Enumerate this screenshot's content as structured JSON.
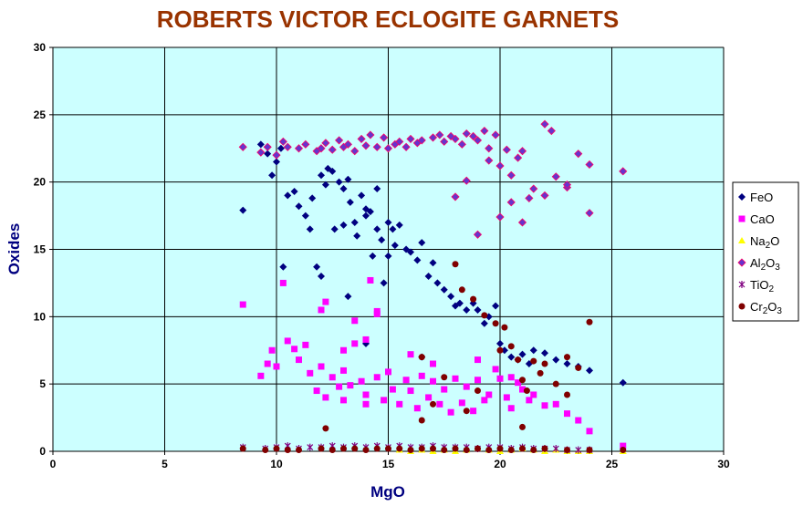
{
  "chart_data": {
    "type": "scatter",
    "title": "ROBERTS VICTOR ECLOGITE GARNETS",
    "x_label": "MgO",
    "y_label": "Oxides",
    "xlim": [
      0,
      30
    ],
    "ylim": [
      0,
      30
    ],
    "xticks": [
      0,
      5,
      10,
      15,
      20,
      25,
      30
    ],
    "yticks": [
      0,
      5,
      10,
      15,
      20,
      25,
      30
    ],
    "grid": true,
    "legend": "right",
    "series": [
      {
        "name": "FeO",
        "color": "#000080",
        "marker": "diamond",
        "x": [
          8.5,
          9.3,
          9.6,
          9.8,
          10.0,
          10.2,
          10.3,
          10.5,
          10.8,
          11.0,
          11.3,
          11.5,
          11.6,
          11.8,
          12.0,
          12.0,
          12.2,
          12.3,
          12.5,
          12.6,
          12.8,
          13.0,
          13.0,
          13.2,
          13.3,
          13.5,
          13.6,
          13.8,
          14.0,
          14.0,
          14.2,
          14.3,
          14.5,
          14.5,
          14.7,
          14.8,
          15.0,
          15.0,
          15.2,
          15.3,
          15.5,
          15.8,
          16.0,
          16.3,
          16.5,
          16.8,
          17.0,
          17.2,
          17.5,
          17.8,
          18.0,
          18.2,
          18.5,
          18.8,
          19.0,
          19.3,
          19.5,
          19.8,
          20.0,
          20.2,
          20.5,
          20.8,
          21.0,
          21.3,
          21.5,
          22.0,
          22.5,
          23.0,
          23.5,
          24.0,
          25.5,
          13.2,
          14.0,
          16.5
        ],
        "values": [
          17.9,
          22.8,
          22.1,
          20.5,
          21.5,
          22.5,
          13.7,
          19.0,
          19.3,
          18.2,
          17.5,
          16.5,
          18.8,
          13.7,
          13.0,
          20.5,
          19.8,
          21.0,
          20.8,
          16.5,
          20.0,
          19.5,
          16.8,
          20.2,
          18.5,
          17.0,
          16.0,
          19.0,
          18.0,
          17.5,
          17.8,
          14.5,
          16.5,
          19.5,
          15.7,
          12.5,
          17.0,
          14.5,
          16.5,
          15.3,
          16.8,
          15.0,
          14.8,
          14.2,
          15.5,
          13.0,
          14.0,
          12.5,
          12.0,
          11.5,
          10.8,
          11.0,
          10.5,
          11.0,
          10.5,
          9.5,
          10.0,
          10.8,
          8.0,
          7.5,
          7.0,
          6.8,
          7.2,
          6.5,
          7.5,
          7.3,
          6.8,
          6.5,
          6.3,
          6.0,
          5.1,
          11.5,
          8.0,
          7.0
        ]
      },
      {
        "name": "CaO",
        "color": "#ff00ff",
        "marker": "square",
        "x": [
          8.5,
          9.3,
          9.6,
          9.8,
          10.0,
          10.3,
          10.5,
          10.8,
          11.0,
          11.3,
          11.5,
          11.8,
          12.0,
          12.0,
          12.2,
          12.5,
          12.8,
          13.0,
          13.0,
          13.3,
          13.5,
          13.8,
          14.0,
          14.0,
          14.2,
          14.5,
          14.5,
          14.8,
          15.0,
          15.2,
          15.5,
          15.8,
          16.0,
          16.3,
          16.5,
          16.8,
          17.0,
          17.3,
          17.5,
          17.8,
          18.0,
          18.3,
          18.5,
          18.8,
          19.0,
          19.3,
          19.5,
          19.8,
          20.0,
          20.3,
          20.5,
          20.8,
          21.0,
          21.3,
          21.5,
          22.0,
          22.5,
          23.0,
          23.5,
          24.0,
          25.5,
          12.2,
          13.5,
          14.0,
          14.5,
          13.0,
          16.0,
          17.0,
          19.0,
          20.5
        ],
        "values": [
          10.9,
          5.6,
          6.5,
          7.5,
          6.3,
          12.5,
          8.2,
          7.6,
          6.8,
          7.9,
          5.8,
          4.5,
          10.5,
          6.3,
          4.0,
          5.5,
          4.8,
          7.5,
          3.8,
          4.9,
          9.7,
          5.2,
          4.2,
          3.5,
          12.7,
          10.4,
          5.5,
          3.8,
          5.9,
          4.6,
          3.5,
          5.3,
          4.5,
          3.2,
          5.6,
          4.0,
          5.2,
          3.5,
          4.6,
          2.9,
          5.4,
          3.6,
          4.8,
          3.0,
          5.3,
          3.8,
          4.2,
          6.1,
          5.4,
          4.0,
          3.2,
          5.1,
          4.6,
          3.8,
          4.2,
          3.4,
          3.5,
          2.8,
          2.3,
          1.5,
          0.4,
          11.1,
          8.0,
          8.3,
          10.2,
          6.0,
          7.2,
          6.5,
          6.8,
          5.5
        ]
      },
      {
        "name": "Na2O",
        "color": "#ffff00",
        "marker": "triangle",
        "x": [
          15.5,
          16.0,
          16.5,
          17.0,
          17.5,
          18.0,
          18.5,
          19.0,
          19.5,
          20.0,
          20.5,
          21.0,
          21.5,
          22.0,
          22.5,
          23.0,
          23.5,
          24.0,
          25.5
        ],
        "values": [
          0.1,
          0.0,
          0.1,
          0.0,
          0.1,
          0.0,
          0.1,
          0.2,
          0.1,
          0.0,
          0.1,
          0.2,
          0.1,
          0.0,
          0.1,
          0.0,
          0.0,
          0.0,
          0.0
        ]
      },
      {
        "name": "Al2O3",
        "color": "#6633cc",
        "marker": "diamond-edge",
        "x": [
          8.5,
          9.3,
          9.6,
          10.0,
          10.3,
          10.5,
          11.0,
          11.3,
          11.8,
          12.0,
          12.2,
          12.5,
          12.8,
          13.0,
          13.2,
          13.5,
          13.8,
          14.0,
          14.2,
          14.5,
          14.8,
          15.0,
          15.3,
          15.5,
          15.8,
          16.0,
          16.3,
          16.5,
          17.0,
          17.3,
          17.5,
          17.8,
          18.0,
          18.3,
          18.5,
          18.8,
          19.0,
          19.3,
          19.5,
          19.8,
          20.0,
          20.3,
          20.5,
          20.8,
          21.0,
          21.3,
          21.5,
          22.0,
          22.3,
          22.5,
          23.0,
          23.5,
          24.0,
          25.5,
          18.0,
          18.5,
          19.0,
          19.5,
          20.0,
          20.5,
          21.0,
          22.0,
          23.0,
          24.0
        ],
        "values": [
          22.6,
          22.2,
          22.6,
          22.0,
          23.0,
          22.6,
          22.5,
          22.8,
          22.3,
          22.5,
          22.9,
          22.4,
          23.1,
          22.6,
          22.8,
          22.3,
          23.2,
          22.7,
          23.5,
          22.6,
          23.3,
          22.5,
          22.8,
          23.0,
          22.6,
          23.2,
          22.9,
          23.1,
          23.3,
          23.5,
          23.0,
          23.4,
          23.2,
          22.8,
          23.6,
          23.4,
          23.1,
          23.8,
          22.5,
          23.5,
          21.2,
          22.4,
          20.5,
          21.8,
          22.3,
          18.8,
          19.5,
          24.3,
          23.8,
          20.4,
          19.6,
          22.1,
          21.3,
          20.8,
          18.9,
          20.1,
          16.1,
          21.6,
          17.4,
          18.5,
          17.0,
          19.0,
          19.8,
          17.7
        ]
      },
      {
        "name": "TiO2",
        "color": "#800080",
        "marker": "star",
        "x": [
          8.5,
          9.5,
          10.0,
          10.5,
          11.0,
          11.5,
          12.0,
          12.5,
          13.0,
          13.5,
          14.0,
          14.5,
          15.0,
          15.5,
          16.0,
          16.5,
          17.0,
          17.5,
          18.0,
          18.5,
          19.0,
          19.5,
          20.0,
          20.5,
          21.0,
          21.5,
          22.0,
          22.5,
          23.0,
          23.5,
          24.0
        ],
        "values": [
          0.3,
          0.2,
          0.3,
          0.4,
          0.2,
          0.3,
          0.3,
          0.4,
          0.3,
          0.4,
          0.3,
          0.4,
          0.3,
          0.4,
          0.3,
          0.3,
          0.4,
          0.3,
          0.3,
          0.3,
          0.2,
          0.3,
          0.3,
          0.2,
          0.3,
          0.2,
          0.2,
          0.2,
          0.1,
          0.1,
          0.1
        ]
      },
      {
        "name": "Cr2O3",
        "color": "#800000",
        "marker": "circle",
        "x": [
          8.5,
          9.5,
          10.0,
          10.5,
          11.0,
          12.0,
          12.5,
          13.0,
          13.5,
          14.0,
          14.5,
          15.0,
          15.5,
          16.0,
          16.5,
          17.0,
          17.5,
          18.0,
          18.5,
          19.0,
          19.5,
          20.0,
          20.5,
          21.0,
          21.5,
          22.0,
          23.0,
          24.0,
          25.5,
          18.0,
          18.3,
          18.8,
          19.3,
          19.8,
          20.2,
          20.5,
          20.8,
          21.0,
          21.2,
          21.5,
          21.8,
          22.5,
          23.0,
          23.5,
          24.0,
          16.5,
          17.0,
          17.5,
          18.5,
          19.0,
          20.0,
          21.0,
          22.0,
          23.0,
          12.2,
          16.5
        ],
        "values": [
          0.2,
          0.1,
          0.2,
          0.1,
          0.1,
          0.2,
          0.1,
          0.2,
          0.2,
          0.1,
          0.2,
          0.2,
          0.2,
          0.1,
          0.2,
          0.2,
          0.1,
          0.2,
          0.1,
          0.2,
          0.1,
          0.2,
          0.1,
          0.2,
          0.1,
          0.2,
          0.1,
          0.1,
          0.1,
          13.9,
          12.0,
          11.3,
          10.1,
          9.5,
          9.2,
          7.8,
          6.8,
          5.3,
          4.5,
          6.7,
          5.8,
          5.0,
          7.0,
          6.2,
          9.6,
          2.3,
          3.5,
          5.5,
          3.0,
          4.5,
          7.5,
          1.8,
          6.5,
          4.2,
          1.7,
          7.0
        ]
      }
    ]
  }
}
